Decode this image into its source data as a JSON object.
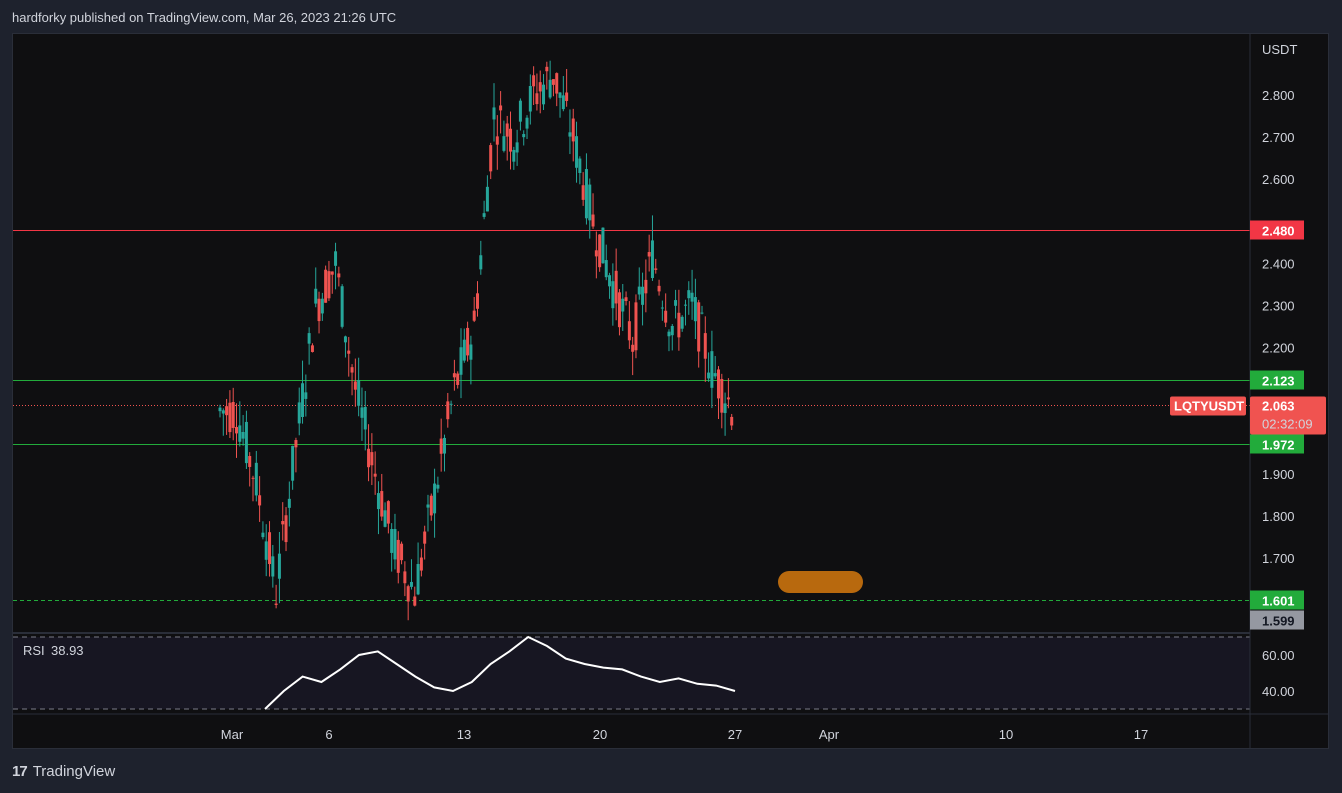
{
  "header": {
    "publisher_line": "hardforky published on TradingView.com, Mar 26, 2023 21:26 UTC"
  },
  "footer": {
    "logo_mark": "17",
    "brand": "TradingView"
  },
  "colors": {
    "up": "#26a69a",
    "down": "#ef5350",
    "resistance": "#f23645",
    "support": "#22ab3b",
    "last_price": "#f05350",
    "rsi_line": "#ffffff",
    "marker": "#b8690e"
  },
  "chart_data": {
    "type": "candlestick",
    "symbol": "LQTYUSDT",
    "quote_currency": "USDT",
    "last_price": "2.063",
    "countdown": "02:32:09",
    "y_ticks": [
      "2.800",
      "2.700",
      "2.600",
      "2.400",
      "2.300",
      "2.200",
      "1.900",
      "1.800",
      "1.700"
    ],
    "x_ticks": [
      "Mar",
      "6",
      "13",
      "20",
      "27",
      "Apr",
      "10",
      "17"
    ],
    "levels": [
      {
        "value": 2.48,
        "label": "2.480",
        "color": "#f23645",
        "style": "solid"
      },
      {
        "value": 2.123,
        "label": "2.123",
        "color": "#22ab3b",
        "style": "solid"
      },
      {
        "value": 1.972,
        "label": "1.972",
        "color": "#22ab3b",
        "style": "solid"
      },
      {
        "value": 1.601,
        "label": "1.601",
        "color": "#22ab3b",
        "style": "dashed"
      }
    ],
    "low_marker": {
      "value": 1.599,
      "label": "1.599"
    },
    "approx_closes": [
      {
        "date": "Mar 1",
        "close": 2.05
      },
      {
        "date": "Mar 2",
        "close": 1.88
      },
      {
        "date": "Mar 3",
        "close": 1.62
      },
      {
        "date": "Mar 4",
        "close": 1.97
      },
      {
        "date": "Mar 5",
        "close": 2.3
      },
      {
        "date": "Mar 6",
        "close": 2.4
      },
      {
        "date": "Mar 7",
        "close": 2.1
      },
      {
        "date": "Mar 8",
        "close": 1.9
      },
      {
        "date": "Mar 9",
        "close": 1.72
      },
      {
        "date": "Mar 10",
        "close": 1.62
      },
      {
        "date": "Mar 11",
        "close": 1.85
      },
      {
        "date": "Mar 12",
        "close": 2.1
      },
      {
        "date": "Mar 13",
        "close": 2.25
      },
      {
        "date": "Mar 14",
        "close": 2.75
      },
      {
        "date": "Mar 15",
        "close": 2.7
      },
      {
        "date": "Mar 16",
        "close": 2.8
      },
      {
        "date": "Mar 17",
        "close": 2.85
      },
      {
        "date": "Mar 18",
        "close": 2.7
      },
      {
        "date": "Mar 19",
        "close": 2.5
      },
      {
        "date": "Mar 20",
        "close": 2.35
      },
      {
        "date": "Mar 21",
        "close": 2.22
      },
      {
        "date": "Mar 22",
        "close": 2.42
      },
      {
        "date": "Mar 23",
        "close": 2.25
      },
      {
        "date": "Mar 24",
        "close": 2.3
      },
      {
        "date": "Mar 25",
        "close": 2.15
      },
      {
        "date": "Mar 26",
        "close": 2.06
      }
    ],
    "rsi": {
      "label": "RSI",
      "value": "38.93",
      "y_ticks": [
        "60.00",
        "40.00"
      ],
      "upper": 70,
      "lower": 30,
      "approx_values": [
        30,
        40,
        48,
        45,
        52,
        60,
        62,
        55,
        48,
        42,
        40,
        45,
        55,
        62,
        70,
        65,
        58,
        55,
        53,
        52,
        48,
        45,
        47,
        44,
        43,
        40
      ]
    }
  }
}
